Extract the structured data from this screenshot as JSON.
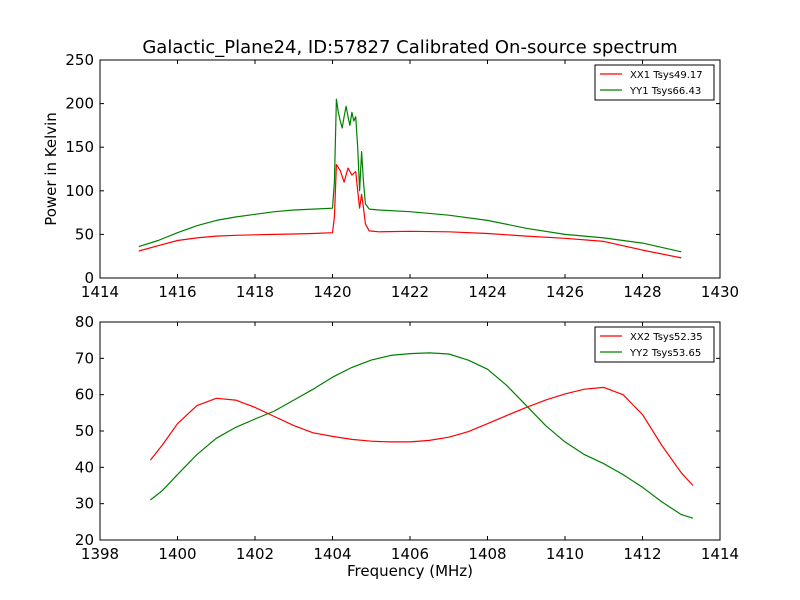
{
  "figure": {
    "title": "Galactic_Plane24, ID:57827 Calibrated On-source spectrum",
    "background": "#ffffff"
  },
  "colors": {
    "xx": "#ff0000",
    "yy": "#008000",
    "axes": "#000000"
  },
  "chart_data": [
    {
      "type": "line",
      "xlabel": "",
      "ylabel": "Power in Kelvin",
      "xlim": [
        1414,
        1430
      ],
      "ylim": [
        0,
        250
      ],
      "xticks": [
        1414,
        1416,
        1418,
        1420,
        1422,
        1424,
        1426,
        1428,
        1430
      ],
      "yticks": [
        0,
        50,
        100,
        150,
        200,
        250
      ],
      "grid": false,
      "legend_position": "top-right",
      "series": [
        {
          "name": "XX1 Tsys49.17",
          "color": "#ff0000",
          "points": [
            [
              1415.0,
              31
            ],
            [
              1415.5,
              37
            ],
            [
              1416.0,
              43
            ],
            [
              1416.5,
              46
            ],
            [
              1417.0,
              48
            ],
            [
              1417.5,
              49
            ],
            [
              1418.0,
              49.5
            ],
            [
              1418.5,
              50
            ],
            [
              1419.0,
              50.5
            ],
            [
              1419.5,
              51
            ],
            [
              1420.0,
              52
            ],
            [
              1420.05,
              70
            ],
            [
              1420.1,
              130
            ],
            [
              1420.2,
              123
            ],
            [
              1420.3,
              110
            ],
            [
              1420.4,
              126
            ],
            [
              1420.5,
              118
            ],
            [
              1420.6,
              122
            ],
            [
              1420.65,
              100
            ],
            [
              1420.7,
              80
            ],
            [
              1420.75,
              96
            ],
            [
              1420.8,
              80
            ],
            [
              1420.85,
              62
            ],
            [
              1420.95,
              54
            ],
            [
              1421.2,
              53
            ],
            [
              1422.0,
              53.5
            ],
            [
              1423.0,
              53
            ],
            [
              1424.0,
              51
            ],
            [
              1425.0,
              48
            ],
            [
              1426.0,
              45.5
            ],
            [
              1427.0,
              42
            ],
            [
              1428.0,
              32
            ],
            [
              1429.0,
              23
            ]
          ]
        },
        {
          "name": "YY1 Tsys66.43",
          "color": "#008000",
          "points": [
            [
              1415.0,
              36
            ],
            [
              1415.5,
              43
            ],
            [
              1416.0,
              52
            ],
            [
              1416.5,
              60
            ],
            [
              1417.0,
              66
            ],
            [
              1417.5,
              70
            ],
            [
              1418.0,
              73
            ],
            [
              1418.5,
              76
            ],
            [
              1419.0,
              78
            ],
            [
              1419.5,
              79
            ],
            [
              1420.0,
              80
            ],
            [
              1420.05,
              110
            ],
            [
              1420.1,
              205
            ],
            [
              1420.15,
              190
            ],
            [
              1420.2,
              180
            ],
            [
              1420.25,
              172
            ],
            [
              1420.3,
              185
            ],
            [
              1420.35,
              197
            ],
            [
              1420.4,
              185
            ],
            [
              1420.45,
              175
            ],
            [
              1420.5,
              190
            ],
            [
              1420.55,
              180
            ],
            [
              1420.6,
              185
            ],
            [
              1420.65,
              150
            ],
            [
              1420.7,
              100
            ],
            [
              1420.75,
              145
            ],
            [
              1420.8,
              110
            ],
            [
              1420.85,
              85
            ],
            [
              1420.95,
              79
            ],
            [
              1421.2,
              78
            ],
            [
              1422.0,
              76
            ],
            [
              1423.0,
              72
            ],
            [
              1424.0,
              66
            ],
            [
              1425.0,
              57
            ],
            [
              1426.0,
              50
            ],
            [
              1427.0,
              46
            ],
            [
              1428.0,
              40
            ],
            [
              1429.0,
              30
            ]
          ]
        }
      ]
    },
    {
      "type": "line",
      "xlabel": "Frequency (MHz)",
      "ylabel": "",
      "xlim": [
        1398,
        1414
      ],
      "ylim": [
        20,
        80
      ],
      "xticks": [
        1398,
        1400,
        1402,
        1404,
        1406,
        1408,
        1410,
        1412,
        1414
      ],
      "yticks": [
        20,
        30,
        40,
        50,
        60,
        70,
        80
      ],
      "grid": false,
      "legend_position": "top-right",
      "series": [
        {
          "name": "XX2 Tsys52.35",
          "color": "#ff0000",
          "points": [
            [
              1399.3,
              42
            ],
            [
              1399.6,
              46
            ],
            [
              1400.0,
              52
            ],
            [
              1400.5,
              57
            ],
            [
              1401.0,
              59
            ],
            [
              1401.5,
              58.5
            ],
            [
              1402.0,
              56.5
            ],
            [
              1402.5,
              54
            ],
            [
              1403.0,
              51.5
            ],
            [
              1403.5,
              49.5
            ],
            [
              1404.0,
              48.5
            ],
            [
              1404.5,
              47.7
            ],
            [
              1405.0,
              47.2
            ],
            [
              1405.5,
              47
            ],
            [
              1406.0,
              47
            ],
            [
              1406.5,
              47.4
            ],
            [
              1407.0,
              48.3
            ],
            [
              1407.5,
              49.8
            ],
            [
              1408.0,
              52
            ],
            [
              1408.5,
              54.3
            ],
            [
              1409.0,
              56.5
            ],
            [
              1409.5,
              58.5
            ],
            [
              1410.0,
              60.2
            ],
            [
              1410.5,
              61.5
            ],
            [
              1411.0,
              62
            ],
            [
              1411.5,
              60
            ],
            [
              1412.0,
              54.5
            ],
            [
              1412.5,
              46
            ],
            [
              1413.0,
              38.5
            ],
            [
              1413.3,
              35
            ]
          ]
        },
        {
          "name": "YY2 Tsys53.65",
          "color": "#008000",
          "points": [
            [
              1399.3,
              31
            ],
            [
              1399.6,
              33.5
            ],
            [
              1400.0,
              38
            ],
            [
              1400.5,
              43.5
            ],
            [
              1401.0,
              48
            ],
            [
              1401.5,
              51
            ],
            [
              1402.0,
              53.3
            ],
            [
              1402.5,
              55.5
            ],
            [
              1403.0,
              58.5
            ],
            [
              1403.5,
              61.5
            ],
            [
              1404.0,
              64.8
            ],
            [
              1404.5,
              67.5
            ],
            [
              1405.0,
              69.5
            ],
            [
              1405.5,
              70.8
            ],
            [
              1406.0,
              71.3
            ],
            [
              1406.5,
              71.5
            ],
            [
              1407.0,
              71.2
            ],
            [
              1407.5,
              69.5
            ],
            [
              1408.0,
              67
            ],
            [
              1408.5,
              62.5
            ],
            [
              1409.0,
              57
            ],
            [
              1409.5,
              51.5
            ],
            [
              1410.0,
              47
            ],
            [
              1410.5,
              43.5
            ],
            [
              1411.0,
              41
            ],
            [
              1411.5,
              38
            ],
            [
              1412.0,
              34.5
            ],
            [
              1412.5,
              30.5
            ],
            [
              1413.0,
              27
            ],
            [
              1413.3,
              26
            ]
          ]
        }
      ]
    }
  ]
}
